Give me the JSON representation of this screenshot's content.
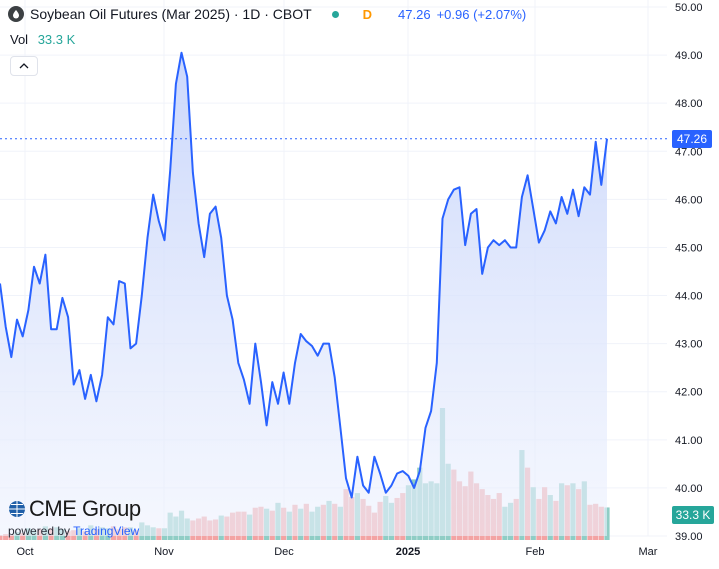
{
  "header": {
    "symbol_title": "Soybean Oil Futures (Mar 2025) · 1D · CBOT",
    "mode": "D",
    "last_price": "47.26",
    "change": "+0.96 (+2.07%)"
  },
  "volume_legend": {
    "label": "Vol",
    "value": "33.3 K"
  },
  "badges": {
    "price": "47.26",
    "volume": "33.3 K"
  },
  "watermark": {
    "brand": "CME Group",
    "powered_prefix": "powered by",
    "powered_brand": "TradingView"
  },
  "colors": {
    "line": "#2962ff",
    "area_top": "#c5d3fb",
    "up_volume": "#8fcdc5",
    "down_volume": "#f3a3a3",
    "grid": "#f0f3fa",
    "axis_text": "#131722"
  },
  "chart_data": {
    "type": "area",
    "title": "Soybean Oil Futures (Mar 2025) · 1D · CBOT",
    "grid": true,
    "last_value_line": 47.26,
    "y_axis": {
      "min": 39,
      "max": 50,
      "ticks": [
        "39.00",
        "40.00",
        "41.00",
        "42.00",
        "43.00",
        "44.00",
        "45.00",
        "46.00",
        "47.00",
        "48.00",
        "49.00",
        "50.00"
      ]
    },
    "x_axis": {
      "ticks": [
        "Oct",
        "Nov",
        "Dec",
        "2025",
        "Feb",
        "Mar"
      ]
    },
    "series": [
      {
        "values": [
          44.25,
          43.35,
          42.72,
          43.5,
          43.15,
          43.7,
          44.6,
          44.25,
          44.85,
          43.3,
          43.3,
          43.95,
          43.55,
          42.15,
          42.45,
          41.85,
          42.35,
          41.8,
          42.35,
          43.55,
          43.4,
          44.3,
          44.25,
          42.9,
          43.0,
          44.0,
          45.2,
          46.1,
          45.55,
          45.15,
          46.6,
          48.4,
          49.05,
          48.55,
          46.55,
          45.5,
          44.8,
          45.7,
          45.85,
          45.2,
          44.0,
          43.5,
          42.6,
          42.25,
          41.75,
          43.0,
          42.2,
          41.3,
          42.2,
          41.75,
          42.4,
          41.75,
          42.6,
          43.2,
          43.05,
          42.95,
          42.75,
          43.0,
          43.0,
          42.3,
          41.25,
          40.2,
          39.8,
          40.65,
          40.05,
          39.9,
          40.65,
          40.3,
          39.9,
          40.05,
          40.3,
          40.35,
          40.25,
          40.0,
          40.35,
          41.25,
          41.6,
          42.6,
          45.6,
          46.0,
          46.2,
          46.25,
          45.05,
          45.7,
          45.8,
          44.45,
          45.0,
          45.15,
          45.05,
          45.15,
          45.0,
          45.0,
          46.05,
          46.5,
          45.8,
          45.1,
          45.35,
          45.75,
          45.5,
          46.05,
          45.7,
          46.2,
          45.65,
          46.25,
          46.1,
          47.2,
          46.3,
          47.26
        ]
      }
    ],
    "volume": {
      "label": "Vol",
      "last": "33.3 K",
      "bars": [
        {
          "v": 5,
          "up": false
        },
        {
          "v": 6,
          "up": false
        },
        {
          "v": 5.5,
          "up": false
        },
        {
          "v": 8,
          "up": true
        },
        {
          "v": 7,
          "up": false
        },
        {
          "v": 12,
          "up": true
        },
        {
          "v": 10,
          "up": true
        },
        {
          "v": 11,
          "up": false
        },
        {
          "v": 14,
          "up": true
        },
        {
          "v": 12,
          "up": false
        },
        {
          "v": 13,
          "up": true
        },
        {
          "v": 11,
          "up": true
        },
        {
          "v": 9,
          "up": false
        },
        {
          "v": 10,
          "up": false
        },
        {
          "v": 12,
          "up": true
        },
        {
          "v": 9,
          "up": false
        },
        {
          "v": 15,
          "up": true
        },
        {
          "v": 11,
          "up": false
        },
        {
          "v": 13,
          "up": true
        },
        {
          "v": 12,
          "up": true
        },
        {
          "v": 14,
          "up": false
        },
        {
          "v": 11,
          "up": false
        },
        {
          "v": 13,
          "up": false
        },
        {
          "v": 13,
          "up": true
        },
        {
          "v": 10,
          "up": false
        },
        {
          "v": 18,
          "up": true
        },
        {
          "v": 15,
          "up": true
        },
        {
          "v": 13,
          "up": true
        },
        {
          "v": 12,
          "up": false
        },
        {
          "v": 12,
          "up": true
        },
        {
          "v": 28,
          "up": true
        },
        {
          "v": 24,
          "up": true
        },
        {
          "v": 30,
          "up": true
        },
        {
          "v": 22,
          "up": true
        },
        {
          "v": 20,
          "up": false
        },
        {
          "v": 22,
          "up": false
        },
        {
          "v": 24,
          "up": false
        },
        {
          "v": 20,
          "up": false
        },
        {
          "v": 21,
          "up": false
        },
        {
          "v": 25,
          "up": true
        },
        {
          "v": 24,
          "up": false
        },
        {
          "v": 28,
          "up": false
        },
        {
          "v": 29,
          "up": false
        },
        {
          "v": 29,
          "up": false
        },
        {
          "v": 26,
          "up": true
        },
        {
          "v": 33,
          "up": false
        },
        {
          "v": 34,
          "up": false
        },
        {
          "v": 32,
          "up": true
        },
        {
          "v": 30,
          "up": false
        },
        {
          "v": 38,
          "up": true
        },
        {
          "v": 33,
          "up": false
        },
        {
          "v": 29,
          "up": true
        },
        {
          "v": 36,
          "up": false
        },
        {
          "v": 32,
          "up": true
        },
        {
          "v": 37,
          "up": false
        },
        {
          "v": 29,
          "up": true
        },
        {
          "v": 34,
          "up": true
        },
        {
          "v": 36,
          "up": false
        },
        {
          "v": 40,
          "up": true
        },
        {
          "v": 37,
          "up": false
        },
        {
          "v": 34,
          "up": true
        },
        {
          "v": 52,
          "up": false
        },
        {
          "v": 44,
          "up": false
        },
        {
          "v": 48,
          "up": true
        },
        {
          "v": 42,
          "up": false
        },
        {
          "v": 35,
          "up": false
        },
        {
          "v": 28,
          "up": false
        },
        {
          "v": 39,
          "up": false
        },
        {
          "v": 45,
          "up": true
        },
        {
          "v": 38,
          "up": true
        },
        {
          "v": 43,
          "up": false
        },
        {
          "v": 48,
          "up": false
        },
        {
          "v": 56,
          "up": true
        },
        {
          "v": 62,
          "up": true
        },
        {
          "v": 74,
          "up": true
        },
        {
          "v": 58,
          "up": true
        },
        {
          "v": 60,
          "up": true
        },
        {
          "v": 58,
          "up": true
        },
        {
          "v": 135,
          "up": true
        },
        {
          "v": 78,
          "up": true
        },
        {
          "v": 72,
          "up": false
        },
        {
          "v": 60,
          "up": false
        },
        {
          "v": 55,
          "up": false
        },
        {
          "v": 70,
          "up": false
        },
        {
          "v": 58,
          "up": false
        },
        {
          "v": 52,
          "up": false
        },
        {
          "v": 46,
          "up": false
        },
        {
          "v": 42,
          "up": false
        },
        {
          "v": 48,
          "up": false
        },
        {
          "v": 34,
          "up": true
        },
        {
          "v": 38,
          "up": true
        },
        {
          "v": 42,
          "up": false
        },
        {
          "v": 92,
          "up": true
        },
        {
          "v": 74,
          "up": false
        },
        {
          "v": 54,
          "up": true
        },
        {
          "v": 42,
          "up": false
        },
        {
          "v": 54,
          "up": false
        },
        {
          "v": 46,
          "up": true
        },
        {
          "v": 40,
          "up": false
        },
        {
          "v": 58,
          "up": true
        },
        {
          "v": 56,
          "up": false
        },
        {
          "v": 58,
          "up": true
        },
        {
          "v": 52,
          "up": false
        },
        {
          "v": 60,
          "up": true
        },
        {
          "v": 36,
          "up": false
        },
        {
          "v": 37,
          "up": false
        },
        {
          "v": 34,
          "up": false
        },
        {
          "v": 33.3,
          "up": true
        }
      ]
    }
  }
}
